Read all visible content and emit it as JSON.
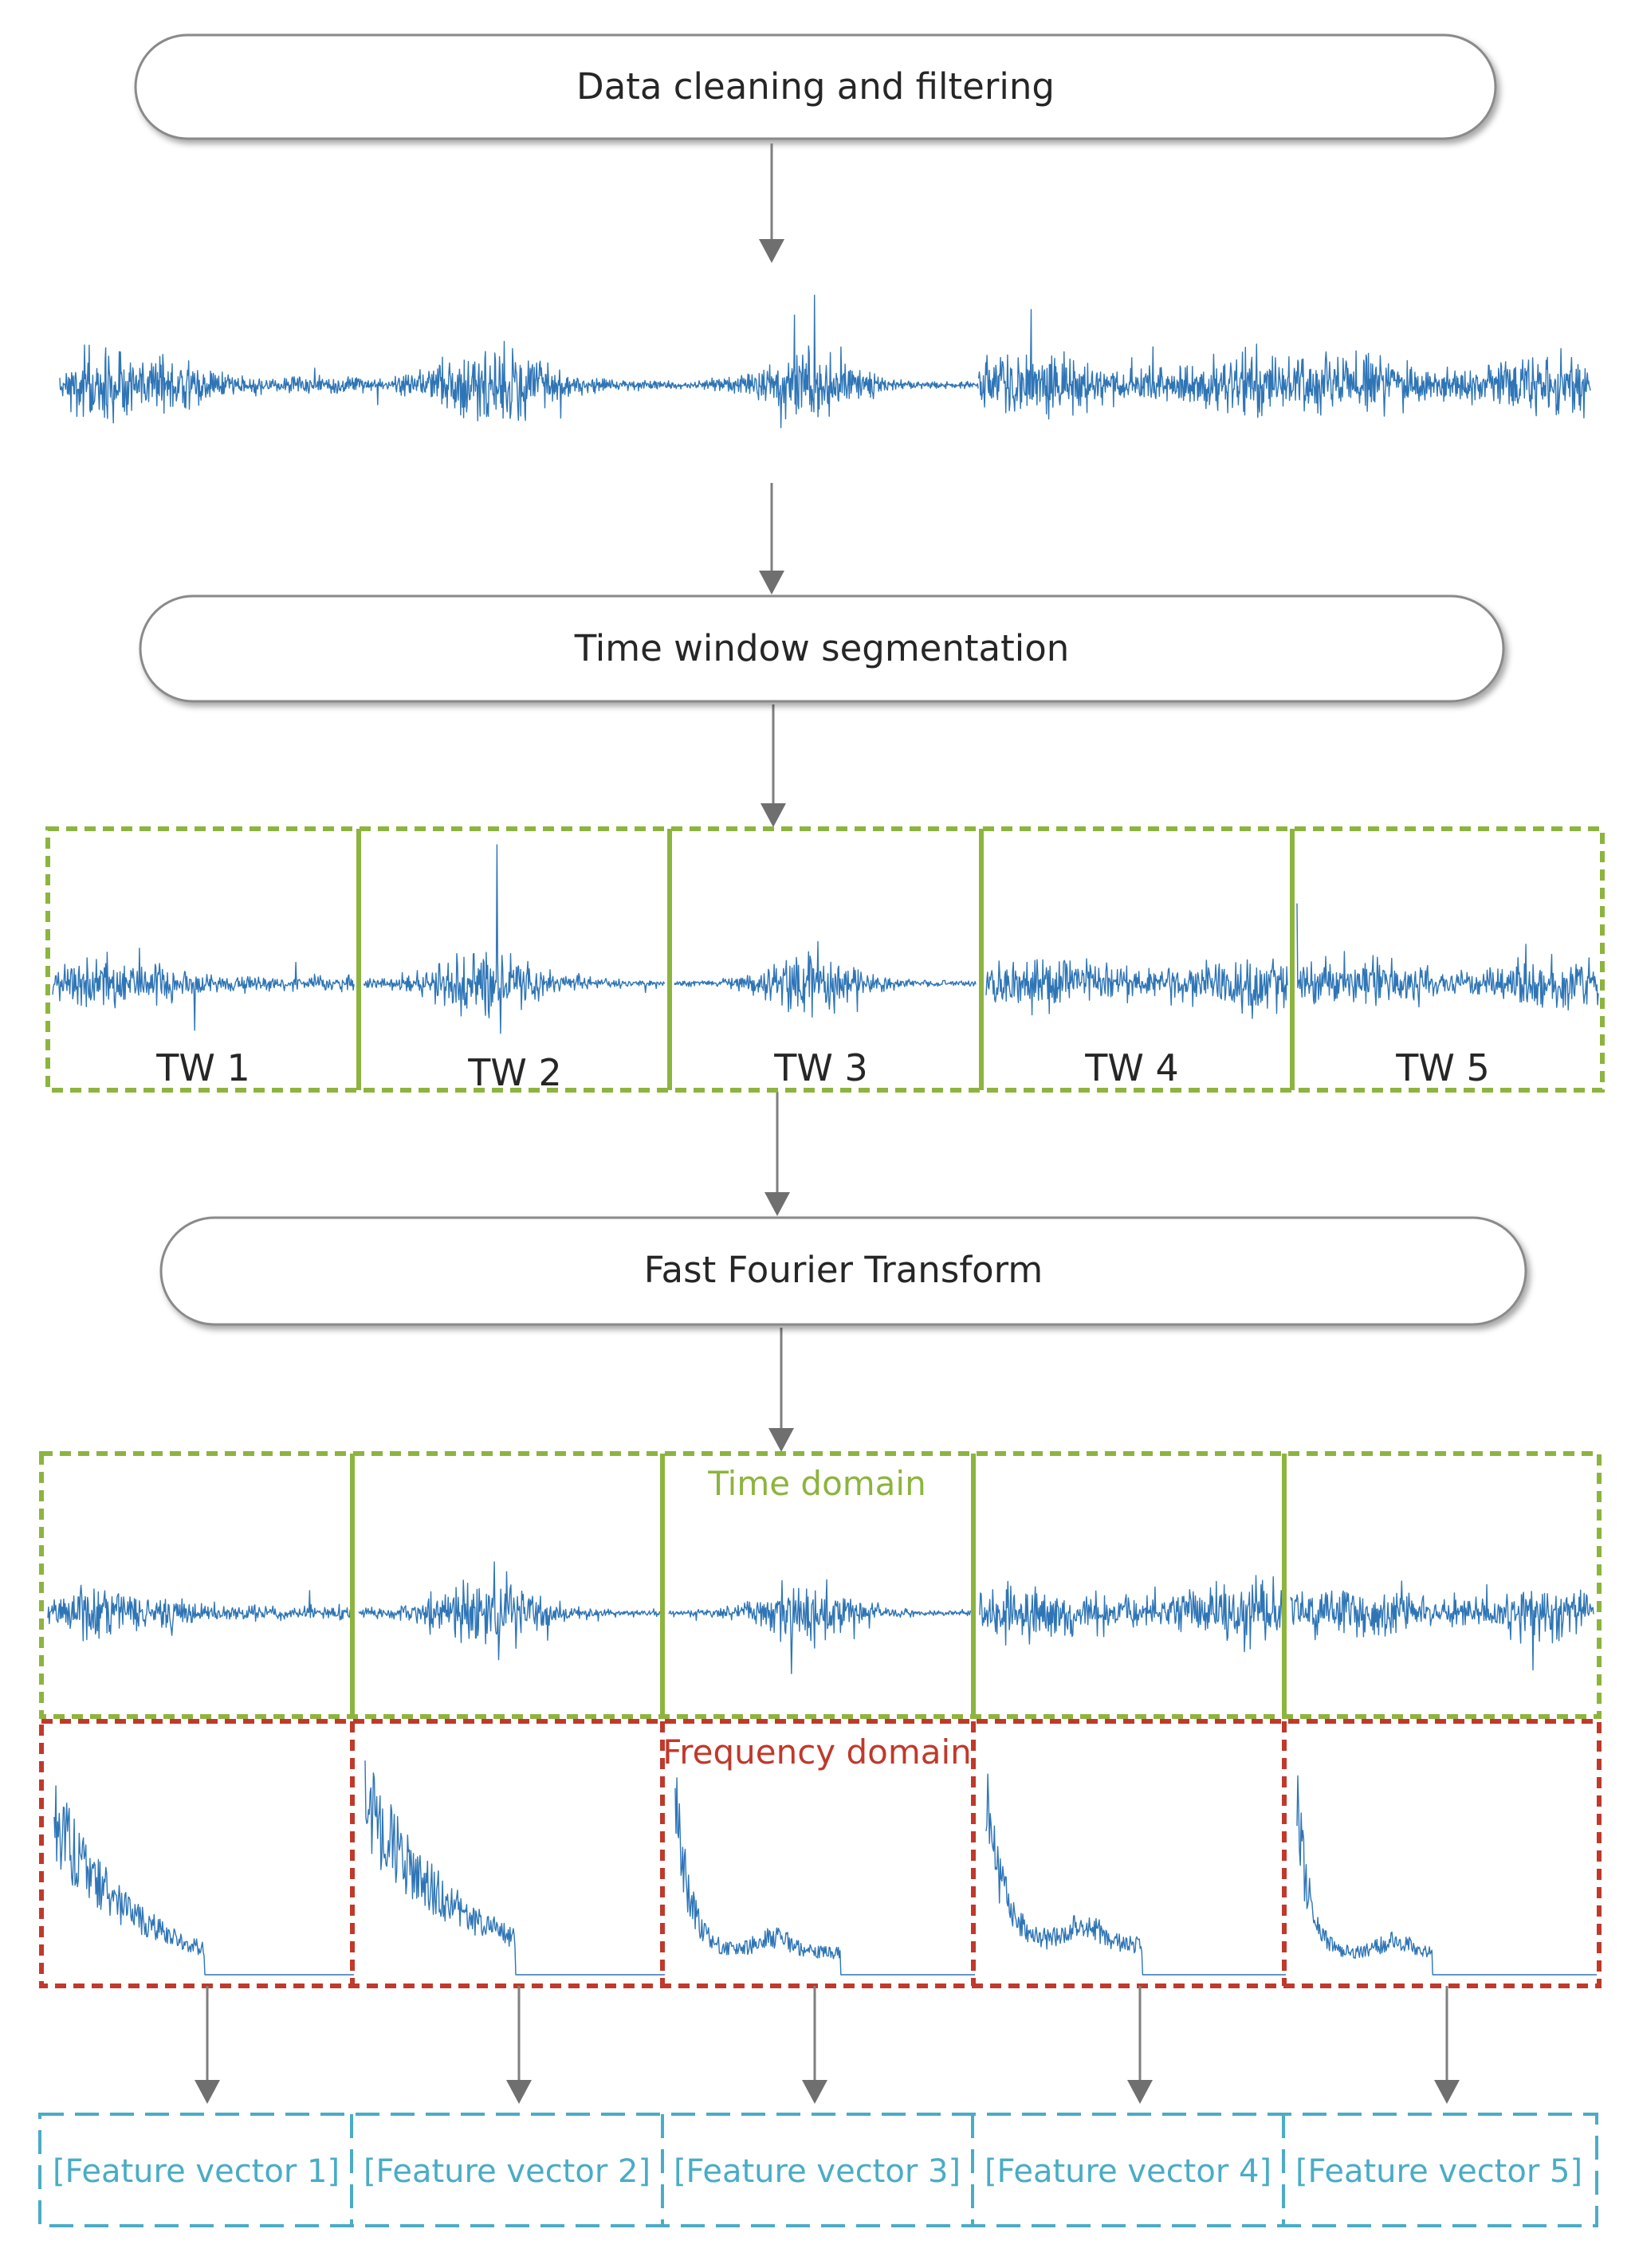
{
  "steps": {
    "cleaning": "Data cleaning and filtering",
    "segmentation": "Time window segmentation",
    "fft": "Fast Fourier Transform"
  },
  "windows": [
    "TW 1",
    "TW 2",
    "TW 3",
    "TW 4",
    "TW 5"
  ],
  "domains": {
    "time": "Time domain",
    "frequency": "Frequency domain"
  },
  "feature_vectors": [
    "[Feature vector 1]",
    "[Feature vector 2]",
    "[Feature vector 3]",
    "[Feature vector 4]",
    "[Feature vector 5]"
  ],
  "colors": {
    "signal": "#2e75b6",
    "time_box": "#8db43e",
    "freq_box": "#c0392b",
    "feature_box": "#4aacc6",
    "arrow": "#7f7f7f",
    "text": "#262626"
  }
}
